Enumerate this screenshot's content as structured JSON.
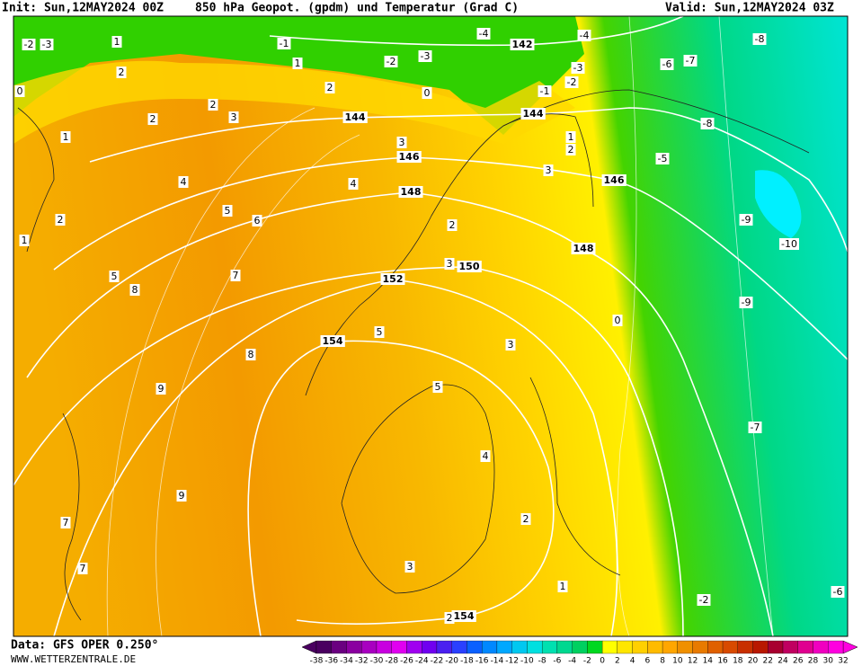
{
  "header": {
    "init": "Init: Sun,12MAY2024 00Z",
    "title": "850 hPa Geopot. (gpdm) und Temperatur (Grad C)",
    "valid": "Valid: Sun,12MAY2024 03Z"
  },
  "footer": {
    "source": "Data: GFS OPER 0.250°",
    "site": "WWW.WETTERZENTRALE.DE"
  },
  "map": {
    "geopotential_labels": [
      142,
      144,
      144,
      146,
      146,
      148,
      148,
      150,
      152,
      154,
      154
    ],
    "temperature_labels": [
      -2,
      -3,
      1,
      -1,
      1,
      -2,
      -3,
      -4,
      -4,
      -3,
      -2,
      -1,
      -6,
      -7,
      -8,
      -8,
      -5,
      -9,
      -10,
      -9,
      -7,
      -2,
      -6,
      0,
      2,
      2,
      2,
      3,
      0,
      2,
      1,
      3,
      4,
      4,
      1,
      2,
      3,
      2,
      1,
      5,
      6,
      5,
      7,
      8,
      2,
      3,
      0,
      5,
      8,
      3,
      9,
      5,
      4,
      9,
      2,
      7,
      7,
      3,
      1,
      2
    ]
  },
  "colorbar": {
    "ticks": [
      -38,
      -36,
      -34,
      -32,
      -30,
      -28,
      -26,
      -24,
      -22,
      -20,
      -18,
      -16,
      -14,
      -12,
      -10,
      -8,
      -6,
      -4,
      -2,
      0,
      2,
      4,
      6,
      8,
      10,
      12,
      14,
      16,
      18,
      20,
      22,
      24,
      26,
      28,
      30,
      32
    ],
    "colors": [
      "#4a0060",
      "#6a0080",
      "#8a00a0",
      "#a800c0",
      "#c800e0",
      "#e000f0",
      "#a000f0",
      "#7000f0",
      "#4a20f0",
      "#2a40ff",
      "#0a60ff",
      "#0088ff",
      "#00a8ff",
      "#00c8f0",
      "#00e0e0",
      "#00e0b0",
      "#00d890",
      "#00d060",
      "#00d820",
      "#ffff00",
      "#ffe600",
      "#ffd000",
      "#ffbb00",
      "#ffa600",
      "#f09000",
      "#e87a00",
      "#e06000",
      "#d84a00",
      "#c83000",
      "#b81800",
      "#a80030",
      "#c00060",
      "#e00090",
      "#f000c0",
      "#ff00e0"
    ]
  }
}
